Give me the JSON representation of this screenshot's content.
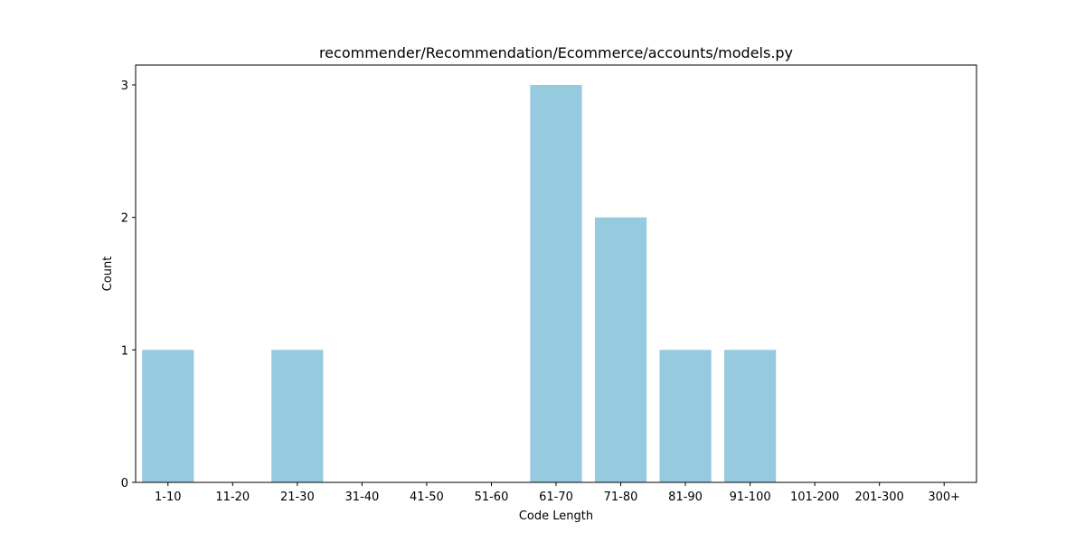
{
  "chart_data": {
    "type": "bar",
    "title": "recommender/Recommendation/Ecommerce/accounts/models.py",
    "xlabel": "Code Length",
    "ylabel": "Count",
    "categories": [
      "1-10",
      "11-20",
      "21-30",
      "31-40",
      "41-50",
      "51-60",
      "61-70",
      "71-80",
      "81-90",
      "91-100",
      "101-200",
      "201-300",
      "300+"
    ],
    "values": [
      1,
      0,
      1,
      0,
      0,
      0,
      3,
      2,
      1,
      1,
      0,
      0,
      0
    ],
    "ylim": [
      0,
      3.15
    ],
    "yticks": [
      "0",
      "1",
      "2",
      "3"
    ],
    "bar_color": "#96cadf",
    "grid": false,
    "legend": "none"
  }
}
